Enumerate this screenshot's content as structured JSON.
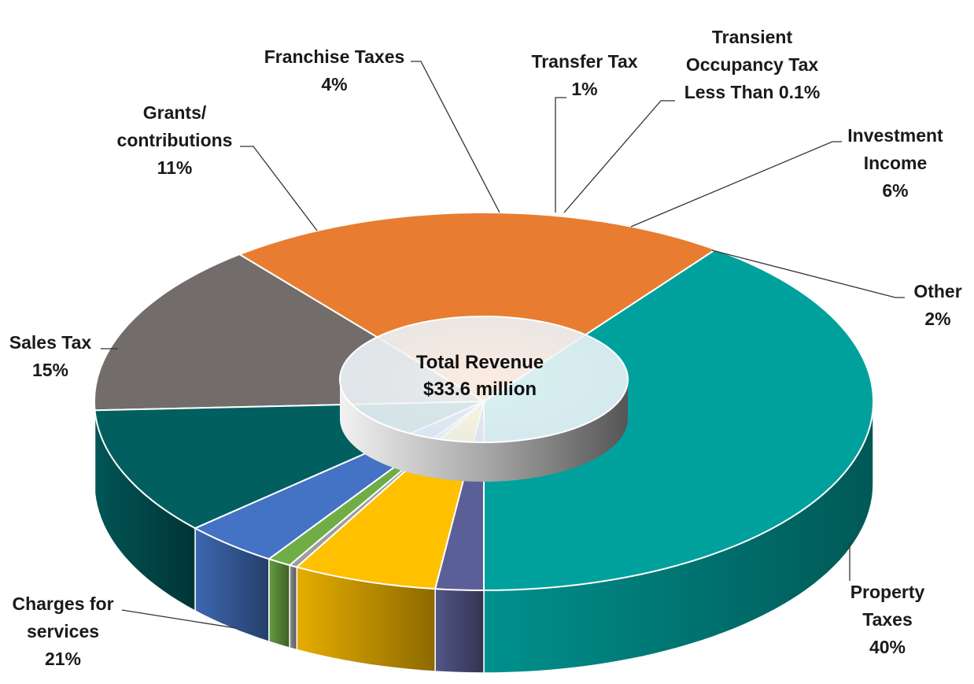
{
  "chart_data": {
    "type": "pie",
    "style": "3d-donut",
    "center_label": {
      "line1": "Total Revenue",
      "line2": "$33.6 million"
    },
    "slices": [
      {
        "key": "property",
        "label_lines": [
          "Property",
          "Taxes"
        ],
        "value_label": "40%",
        "value": 40,
        "color": "#00A19D"
      },
      {
        "key": "charges",
        "label_lines": [
          "Charges for",
          "services"
        ],
        "value_label": "21%",
        "value": 21,
        "color": "#E87D31"
      },
      {
        "key": "sales",
        "label_lines": [
          "Sales Tax"
        ],
        "value_label": "15%",
        "value": 15,
        "color": "#726D6B"
      },
      {
        "key": "grants",
        "label_lines": [
          "Grants/",
          "contributions"
        ],
        "value_label": "11%",
        "value": 11,
        "color": "#015F60"
      },
      {
        "key": "franchise",
        "label_lines": [
          "Franchise Taxes"
        ],
        "value_label": "4%",
        "value": 4,
        "color": "#4472C4"
      },
      {
        "key": "transfer",
        "label_lines": [
          "Transfer Tax"
        ],
        "value_label": "1%",
        "value": 1,
        "color": "#70AD47"
      },
      {
        "key": "transient",
        "label_lines": [
          "Transient",
          "Occupancy Tax"
        ],
        "value_label": "Less Than 0.1%",
        "value": 0.1,
        "color": "#9E9E9E"
      },
      {
        "key": "investment",
        "label_lines": [
          "Investment",
          "Income"
        ],
        "value_label": "6%",
        "value": 6,
        "color": "#FFC000"
      },
      {
        "key": "other",
        "label_lines": [
          "Other"
        ],
        "value_label": "2%",
        "value": 2,
        "color": "#5B5F97"
      }
    ]
  }
}
